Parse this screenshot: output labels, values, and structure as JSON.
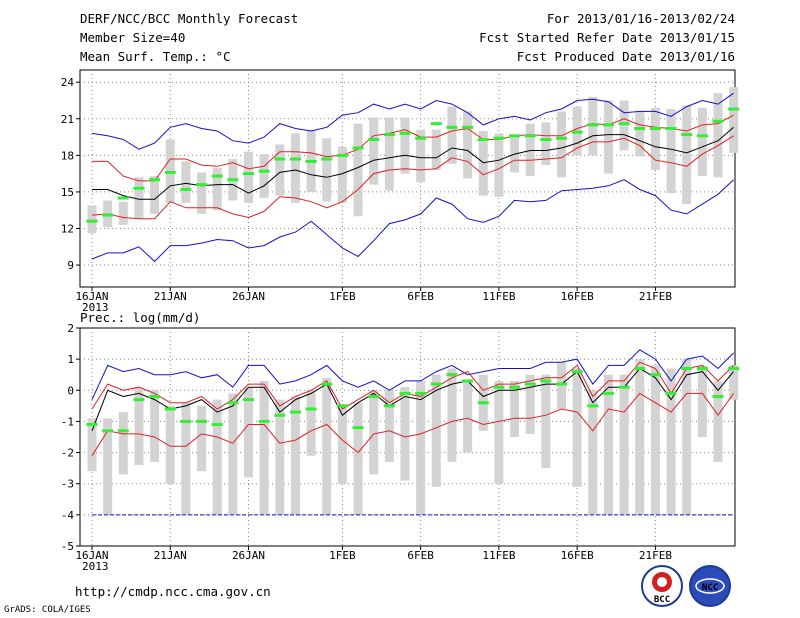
{
  "header": {
    "title": "DERF/NCC/BCC Monthly Forecast",
    "member": "Member Size=40",
    "variable": "Mean Surf. Temp.: °C",
    "period": "For 2013/01/16-2013/02/24",
    "started": "Fcst Started Refer Date 2013/01/15",
    "produced": "Fcst Produced Date 2013/01/16"
  },
  "footer": {
    "url": "http://cmdp.ncc.cma.gov.cn",
    "credit": "GrADS: COLA/IGES",
    "logo_left": "BCC",
    "logo_right": "NCC"
  },
  "colors": {
    "box": "#d3d3d3",
    "median": "#33ee33",
    "mean": "#000000",
    "spread": "#dd2222",
    "extreme": "#1111cc",
    "grid": "#888888"
  },
  "chart_data": [
    {
      "type": "line",
      "title": "Mean Surf. Temp.: °C",
      "ylim": [
        7.2,
        25
      ],
      "yticks": [
        9,
        12,
        15,
        18,
        21,
        24
      ],
      "yticklabels": [
        "9",
        "12",
        "15",
        "18",
        "21",
        "24"
      ],
      "xticks": [
        0,
        5,
        10,
        16,
        21,
        26,
        31,
        36
      ],
      "xticklabels": [
        "16JAN",
        "21JAN",
        "26JAN",
        "1FEB",
        "6FEB",
        "11FEB",
        "16FEB",
        "21FEB"
      ],
      "xyear": "2013",
      "series": [
        {
          "name": "max",
          "values": [
            19.8,
            19.6,
            19.3,
            18.5,
            19.0,
            20.3,
            20.6,
            20.2,
            20.0,
            19.2,
            19.0,
            19.5,
            20.6,
            20.2,
            20.0,
            20.3,
            21.3,
            21.5,
            22.2,
            21.8,
            22.2,
            21.8,
            22.5,
            22.2,
            21.5,
            20.5,
            21.0,
            21.2,
            20.9,
            21.5,
            21.8,
            22.5,
            22.6,
            22.4,
            21.5,
            21.6,
            21.6,
            21.2,
            22.0,
            22.5,
            22.2,
            23.1
          ]
        },
        {
          "name": "mean_plus_sd",
          "values": [
            17.5,
            17.5,
            16.3,
            15.9,
            15.9,
            17.7,
            17.7,
            17.2,
            17.1,
            17.4,
            16.9,
            17.1,
            18.3,
            18.3,
            18.2,
            17.9,
            18.0,
            18.5,
            19.6,
            19.8,
            20.1,
            19.5,
            19.5,
            20.0,
            20.2,
            19.3,
            19.3,
            19.6,
            19.7,
            19.6,
            19.6,
            20.2,
            20.6,
            20.5,
            21.0,
            20.5,
            20.3,
            20.2,
            20.0,
            20.5,
            20.6,
            21.3
          ]
        },
        {
          "name": "mean",
          "values": [
            15.2,
            15.2,
            14.7,
            14.4,
            14.4,
            15.5,
            15.7,
            15.5,
            15.6,
            15.6,
            14.9,
            15.5,
            16.6,
            16.8,
            16.4,
            16.2,
            16.5,
            17.0,
            17.6,
            17.8,
            18.0,
            17.8,
            17.8,
            18.6,
            18.4,
            17.4,
            17.6,
            18.1,
            18.4,
            18.4,
            18.6,
            19.0,
            19.6,
            19.7,
            19.7,
            19.2,
            18.7,
            18.5,
            18.2,
            18.7,
            19.2,
            20.3
          ]
        },
        {
          "name": "mean_minus_sd",
          "values": [
            13.1,
            13.2,
            12.9,
            12.8,
            12.8,
            14.2,
            13.7,
            13.7,
            13.7,
            13.2,
            12.9,
            13.4,
            14.6,
            14.5,
            14.2,
            13.7,
            14.2,
            15.2,
            16.5,
            16.8,
            16.9,
            16.8,
            16.9,
            17.8,
            17.5,
            16.4,
            16.9,
            17.6,
            17.6,
            17.7,
            17.8,
            18.6,
            19.1,
            19.1,
            19.4,
            18.8,
            17.6,
            17.4,
            17.1,
            18.1,
            18.8,
            19.6
          ]
        },
        {
          "name": "min",
          "values": [
            9.5,
            10.0,
            10.0,
            10.5,
            9.3,
            10.6,
            10.6,
            10.8,
            11.1,
            11.0,
            10.4,
            10.6,
            11.3,
            11.7,
            12.6,
            11.5,
            10.4,
            9.7,
            11.0,
            12.4,
            12.7,
            13.2,
            14.5,
            14.0,
            12.8,
            12.5,
            13.0,
            14.3,
            14.2,
            14.3,
            15.1,
            15.2,
            15.3,
            15.5,
            16.0,
            15.2,
            14.7,
            13.5,
            13.2,
            14.0,
            14.8,
            16.0
          ]
        }
      ],
      "box": {
        "low": [
          11.6,
          12.1,
          12.3,
          12.8,
          13.2,
          14.1,
          14.1,
          13.2,
          13.5,
          14.3,
          14.1,
          14.5,
          14.7,
          14.1,
          15.0,
          14.2,
          14.1,
          13.0,
          15.6,
          15.1,
          16.5,
          15.8,
          16.8,
          17.3,
          16.1,
          14.7,
          14.6,
          16.6,
          16.3,
          17.2,
          16.2,
          18.0,
          18.0,
          16.5,
          18.4,
          17.9,
          16.8,
          14.9,
          14.0,
          16.3,
          16.2,
          18.2
        ],
        "high": [
          13.9,
          14.3,
          14.2,
          16.2,
          16.3,
          19.3,
          17.5,
          16.6,
          17.0,
          17.7,
          18.3,
          18.1,
          18.9,
          19.8,
          20.1,
          19.4,
          18.7,
          20.6,
          21.1,
          21.1,
          21.1,
          20.1,
          20.1,
          22.0,
          21.6,
          20.0,
          19.8,
          19.7,
          20.6,
          20.7,
          21.6,
          22.0,
          22.8,
          22.5,
          22.5,
          21.6,
          21.9,
          21.8,
          22.1,
          21.9,
          23.1,
          23.6
        ],
        "median": [
          12.6,
          13.1,
          14.5,
          15.3,
          16.0,
          16.6,
          15.2,
          15.6,
          16.3,
          16.0,
          16.5,
          16.7,
          17.7,
          17.7,
          17.5,
          17.7,
          18.0,
          18.6,
          19.3,
          19.7,
          19.8,
          19.4,
          20.6,
          20.3,
          20.3,
          19.3,
          19.4,
          19.6,
          19.6,
          19.3,
          19.4,
          19.9,
          20.5,
          20.5,
          20.6,
          20.2,
          20.2,
          20.2,
          19.7,
          19.6,
          20.8,
          21.8
        ]
      }
    },
    {
      "type": "line",
      "title": "Prec.: log(mm/d)",
      "ylim": [
        -5,
        2
      ],
      "yticks": [
        -5,
        -4,
        -3,
        -2,
        -1,
        0,
        1,
        2
      ],
      "yticklabels": [
        "-5",
        "-4",
        "-3",
        "-2",
        "-1",
        "0",
        "1",
        "2"
      ],
      "xticks": [
        0,
        5,
        10,
        16,
        21,
        26,
        31,
        36
      ],
      "xticklabels": [
        "16JAN",
        "21JAN",
        "26JAN",
        "1FEB",
        "6FEB",
        "11FEB",
        "16FEB",
        "21FEB"
      ],
      "xyear": "2013",
      "baseline": -4,
      "series": [
        {
          "name": "max",
          "values": [
            -0.3,
            0.8,
            0.6,
            0.7,
            0.5,
            0.5,
            0.6,
            0.4,
            0.5,
            0.1,
            0.8,
            0.8,
            0.2,
            0.3,
            0.5,
            0.8,
            0.3,
            0.1,
            0.3,
            0.0,
            0.3,
            0.3,
            0.6,
            0.8,
            0.5,
            0.6,
            0.7,
            0.7,
            0.7,
            0.9,
            0.9,
            1.0,
            0.2,
            0.8,
            0.8,
            1.3,
            1.0,
            0.3,
            1.0,
            1.1,
            0.7,
            1.2
          ]
        },
        {
          "name": "mean_plus_sd",
          "values": [
            -0.6,
            0.2,
            0.0,
            0.1,
            -0.1,
            -0.4,
            -0.4,
            -0.2,
            -0.6,
            -0.3,
            0.2,
            0.2,
            -0.5,
            -0.2,
            0.0,
            0.3,
            -0.6,
            -0.3,
            0.0,
            -0.4,
            -0.1,
            -0.2,
            0.1,
            0.4,
            0.6,
            0.0,
            0.2,
            0.2,
            0.3,
            0.4,
            0.4,
            0.8,
            -0.2,
            0.3,
            0.3,
            0.9,
            0.7,
            -0.1,
            0.7,
            0.8,
            0.3,
            0.8
          ]
        },
        {
          "name": "mean",
          "values": [
            -1.3,
            0.0,
            -0.2,
            -0.1,
            -0.3,
            -0.6,
            -0.5,
            -0.3,
            -0.7,
            -0.5,
            0.1,
            0.1,
            -0.7,
            -0.3,
            -0.1,
            0.2,
            -0.8,
            -0.4,
            -0.1,
            -0.5,
            -0.2,
            -0.3,
            0.0,
            0.2,
            0.3,
            -0.2,
            0.0,
            0.0,
            0.1,
            0.2,
            0.2,
            0.6,
            -0.4,
            0.1,
            0.1,
            0.7,
            0.4,
            -0.3,
            0.5,
            0.6,
            0.0,
            0.6
          ]
        },
        {
          "name": "mean_minus_sd",
          "values": [
            -2.1,
            -1.3,
            -1.4,
            -1.4,
            -1.5,
            -1.8,
            -1.8,
            -1.4,
            -1.5,
            -1.7,
            -1.1,
            -1.1,
            -1.7,
            -1.6,
            -1.3,
            -1.1,
            -1.6,
            -2.0,
            -1.4,
            -1.3,
            -1.5,
            -1.4,
            -1.2,
            -1.0,
            -0.9,
            -1.1,
            -1.0,
            -0.9,
            -0.9,
            -0.8,
            -0.6,
            -0.7,
            -1.3,
            -0.6,
            -0.7,
            -0.1,
            -0.4,
            -0.7,
            -0.1,
            -0.1,
            -0.8,
            -0.1
          ]
        },
        {
          "name": "min",
          "values": [
            -4,
            -4,
            -4,
            -4,
            -4,
            -4,
            -4,
            -4,
            -4,
            -4,
            -4,
            -4,
            -4,
            -4,
            -4,
            -4,
            -4,
            -4,
            -4,
            -4,
            -4,
            -4,
            -4,
            -4,
            -4,
            -4,
            -4,
            -4,
            -4,
            -4,
            -4,
            -4,
            -4,
            -4,
            -4,
            -4,
            -4,
            -4,
            -4,
            -4,
            -4,
            -4
          ]
        }
      ],
      "box": {
        "low": [
          -2.6,
          -4.0,
          -2.7,
          -2.4,
          -2.3,
          -3.0,
          -4.0,
          -2.6,
          -4.0,
          -4.0,
          -2.8,
          -4.0,
          -4.0,
          -4.0,
          -2.1,
          -4.0,
          -3.0,
          -4.0,
          -2.7,
          -2.3,
          -2.9,
          -4.0,
          -3.1,
          -2.3,
          -2.0,
          -1.3,
          -3.0,
          -1.5,
          -1.4,
          -2.5,
          -0.6,
          -3.1,
          -4.0,
          -4.0,
          -4.0,
          -4.0,
          -4.0,
          -4.0,
          -4.0,
          -1.5,
          -2.3,
          -0.3
        ],
        "high": [
          -0.9,
          -0.9,
          -0.7,
          0.1,
          0.0,
          -0.5,
          -0.4,
          -0.5,
          -0.3,
          -0.1,
          0.1,
          0.3,
          -0.3,
          -0.2,
          0.0,
          0.4,
          -0.5,
          -0.4,
          0.0,
          0.0,
          0.1,
          0.3,
          0.5,
          0.7,
          0.3,
          0.5,
          0.3,
          0.3,
          0.5,
          0.5,
          0.9,
          0.7,
          0.0,
          0.5,
          0.5,
          1.0,
          0.8,
          0.7,
          1.0,
          0.8,
          0.3,
          0.8
        ],
        "median": [
          -1.1,
          -1.3,
          -1.3,
          -0.3,
          -0.2,
          -0.6,
          -1.0,
          -1.0,
          -1.1,
          -0.4,
          -0.3,
          -1.0,
          -0.8,
          -0.7,
          -0.6,
          0.2,
          -0.5,
          -1.2,
          -0.2,
          -0.5,
          -0.1,
          -0.1,
          0.2,
          0.5,
          0.3,
          -0.4,
          0.1,
          0.1,
          0.2,
          0.3,
          0.2,
          0.6,
          -0.5,
          -0.1,
          0.1,
          0.7,
          0.5,
          -0.1,
          0.7,
          0.7,
          -0.2,
          0.7
        ]
      }
    }
  ]
}
